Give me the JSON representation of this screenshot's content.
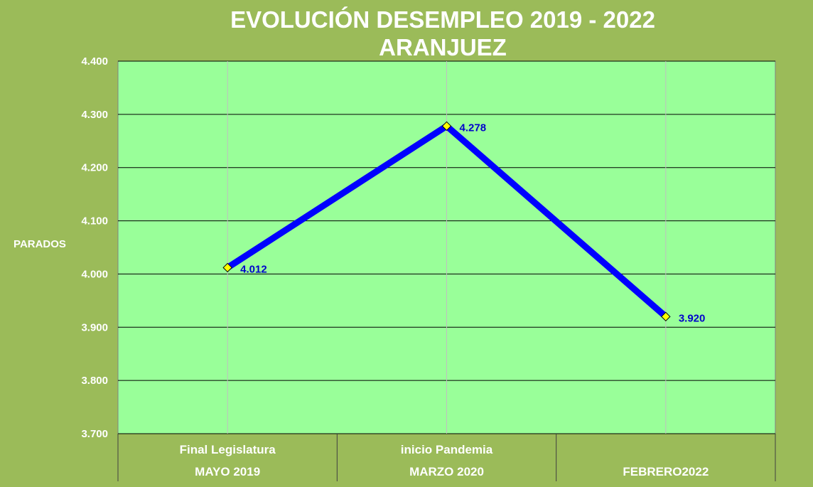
{
  "chart_data": {
    "type": "line",
    "title": [
      "EVOLUCIÓN DESEMPLEO 2019 - 2022",
      "ARANJUEZ"
    ],
    "ylabel": "PARADOS",
    "xlabel": "",
    "ylim": [
      3700,
      4400
    ],
    "y_ticks": [
      "3.700",
      "3.800",
      "3.900",
      "4.000",
      "4.100",
      "4.200",
      "4.300",
      "4.400"
    ],
    "categories": [
      {
        "line1": "Final Legislatura",
        "line2": "MAYO 2019"
      },
      {
        "line1": "inicio Pandemia",
        "line2": "MARZO 2020"
      },
      {
        "line1": "",
        "line2": "FEBRERO2022"
      }
    ],
    "series": [
      {
        "values": [
          4012,
          4278,
          3920
        ],
        "labels": [
          "4.012",
          "4.278",
          "3.920"
        ]
      }
    ],
    "grid": true,
    "legend": "none",
    "colors": {
      "background": "#9bbb59",
      "plot_area": "#99ff99",
      "line": "#0000ff",
      "marker": "#ffff00",
      "data_label": "#0000cc",
      "text": "#ffffff"
    }
  }
}
